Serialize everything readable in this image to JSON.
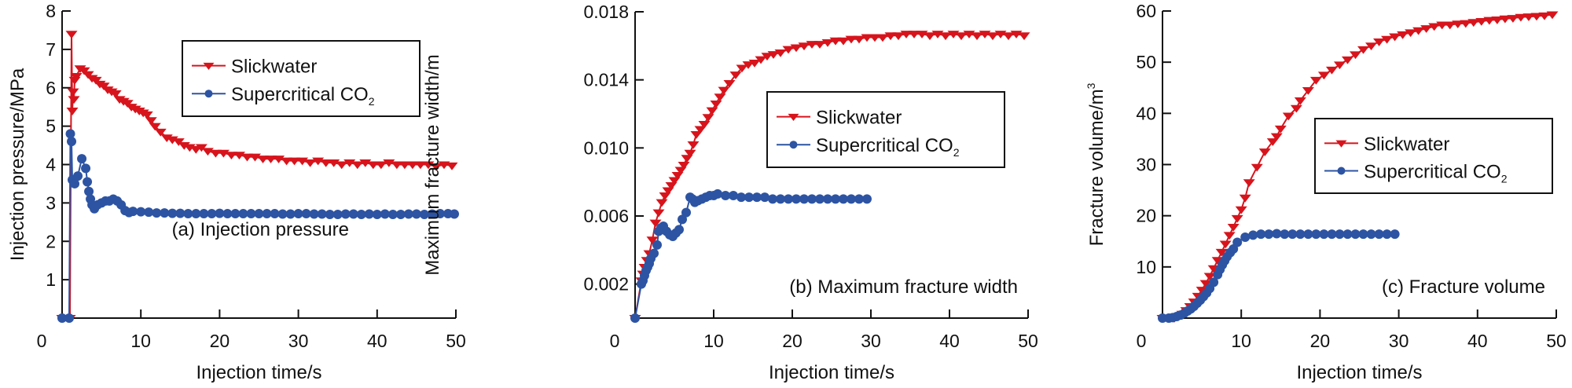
{
  "colors": {
    "slickwater": "#d7141c",
    "co2": "#2d54a3",
    "axis": "#111111"
  },
  "legend": {
    "slickwater": "Slickwater",
    "co2_main": "Supercritical CO",
    "co2_sub": "2"
  },
  "chart_data": [
    {
      "id": "a",
      "type": "line",
      "panel_label": "(a) Injection pressure",
      "xlabel": "Injection time/s",
      "ylabel": "Injection pressure/MPa",
      "ylabel_sup": "",
      "xlim": [
        0,
        50
      ],
      "ylim": [
        0,
        8
      ],
      "xticks": [
        0,
        10,
        20,
        30,
        40,
        50
      ],
      "xtick_labels": [
        "0",
        "10",
        "20",
        "30",
        "40",
        "50"
      ],
      "yticks": [
        1,
        2,
        3,
        4,
        5,
        6,
        7,
        8
      ],
      "ytick_labels": [
        "1",
        "2",
        "3",
        "4",
        "5",
        "6",
        "7",
        "8"
      ],
      "legend_position": "top-right",
      "grid": false,
      "series": [
        {
          "name": "Slickwater",
          "marker": "triangle-down",
          "x": [
            0,
            1,
            1.2,
            1.3,
            1.4,
            1.5,
            1.6,
            1.8,
            2.3,
            2.8,
            3.3,
            3.8,
            4.3,
            4.8,
            5.3,
            5.8,
            6.3,
            6.8,
            7.3,
            7.8,
            8.3,
            8.8,
            9.3,
            9.8,
            10.3,
            10.8,
            11.3,
            11.8,
            12.5,
            13.3,
            14.0,
            14.8,
            15.5,
            16.2,
            17.0,
            17.7,
            18.5,
            19.5,
            20.5,
            21.5,
            22.5,
            23.5,
            24.5,
            25.5,
            26.5,
            27.5,
            28.5,
            29.5,
            30.5,
            31.5,
            32.5,
            33.5,
            34.5,
            35.5,
            36.5,
            37.5,
            38.5,
            39.5,
            40.5,
            41.5,
            42.5,
            43.5,
            44.5,
            45.5,
            46.5,
            47.5,
            48.5,
            49.5
          ],
          "y": [
            0,
            0,
            7.4,
            5.4,
            5.9,
            5.7,
            6.2,
            6.3,
            6.5,
            6.45,
            6.35,
            6.25,
            6.2,
            6.1,
            6.05,
            5.95,
            5.9,
            5.85,
            5.7,
            5.65,
            5.6,
            5.5,
            5.45,
            5.4,
            5.35,
            5.3,
            5.15,
            5.0,
            4.85,
            4.7,
            4.65,
            4.6,
            4.5,
            4.45,
            4.4,
            4.45,
            4.35,
            4.3,
            4.3,
            4.25,
            4.25,
            4.2,
            4.2,
            4.15,
            4.15,
            4.15,
            4.1,
            4.1,
            4.1,
            4.05,
            4.1,
            4.05,
            4.05,
            4.0,
            4.05,
            4.0,
            4.05,
            4.0,
            4.0,
            4.05,
            4.0,
            4.0,
            4.0,
            4.0,
            4.0,
            3.95,
            4.0,
            3.97
          ]
        },
        {
          "name": "Supercritical CO2",
          "marker": "circle",
          "x": [
            0,
            0.9,
            1.05,
            1.2,
            1.3,
            1.6,
            2.0,
            2.5,
            3.0,
            3.2,
            3.4,
            3.6,
            3.8,
            4.1,
            4.5,
            5.0,
            5.5,
            6.0,
            6.5,
            7.0,
            7.5,
            8.0,
            8.5,
            9.0,
            10.0,
            11.0,
            12.0,
            13.0,
            14.0,
            15.0,
            16.0,
            17.0,
            18.0,
            19.0,
            20.0,
            21.0,
            22.0,
            23.0,
            24.0,
            25.0,
            26.0,
            27.0,
            28.0,
            29.0,
            30.0,
            31.0,
            32.0,
            33.0,
            34.0,
            35.0,
            36.0,
            37.0,
            38.0,
            39.0,
            40.0,
            41.0,
            42.0,
            43.0,
            44.0,
            45.0,
            46.0,
            47.0,
            48.0,
            49.0,
            49.8
          ],
          "y": [
            0,
            0,
            4.8,
            4.6,
            3.6,
            3.5,
            3.7,
            4.15,
            3.9,
            3.55,
            3.3,
            3.1,
            2.95,
            2.85,
            2.95,
            3.0,
            3.05,
            3.05,
            3.1,
            3.05,
            2.95,
            2.8,
            2.75,
            2.78,
            2.77,
            2.76,
            2.74,
            2.74,
            2.73,
            2.73,
            2.72,
            2.72,
            2.72,
            2.72,
            2.73,
            2.72,
            2.72,
            2.72,
            2.72,
            2.72,
            2.72,
            2.72,
            2.71,
            2.71,
            2.72,
            2.72,
            2.71,
            2.71,
            2.7,
            2.7,
            2.71,
            2.71,
            2.7,
            2.71,
            2.7,
            2.71,
            2.7,
            2.7,
            2.71,
            2.71,
            2.7,
            2.71,
            2.72,
            2.72,
            2.71
          ]
        }
      ]
    },
    {
      "id": "b",
      "type": "line",
      "panel_label": "(b) Maximum fracture width",
      "xlabel": "Injection time/s",
      "ylabel": "Maximum fracture width/m",
      "ylabel_sup": "",
      "xlim": [
        0,
        50
      ],
      "ylim": [
        0,
        0.018
      ],
      "xticks": [
        0,
        10,
        20,
        30,
        40,
        50
      ],
      "xtick_labels": [
        "0",
        "10",
        "20",
        "30",
        "40",
        "50"
      ],
      "yticks": [
        0.002,
        0.006,
        0.01,
        0.014,
        0.018
      ],
      "ytick_labels": [
        "0.002",
        "0.006",
        "0.010",
        "0.014",
        "0.018"
      ],
      "legend_position": "center-right",
      "grid": false,
      "series": [
        {
          "name": "Slickwater",
          "marker": "triangle-down",
          "x": [
            0,
            0.8,
            1.0,
            1.2,
            1.5,
            1.8,
            2.2,
            2.6,
            3.0,
            3.4,
            3.8,
            4.2,
            4.6,
            5.0,
            5.4,
            5.8,
            6.2,
            6.6,
            7.0,
            7.4,
            7.8,
            8.3,
            8.8,
            9.3,
            9.8,
            10.3,
            10.8,
            11.3,
            12.0,
            12.8,
            13.6,
            14.4,
            15.2,
            16.0,
            16.8,
            17.6,
            18.5,
            19.5,
            20.5,
            21.5,
            22.5,
            23.5,
            24.5,
            25.5,
            26.5,
            27.5,
            28.5,
            29.5,
            30.5,
            31.5,
            32.5,
            33.5,
            34.5,
            35.5,
            36.5,
            37.5,
            38.5,
            39.5,
            40.5,
            41.5,
            42.5,
            43.5,
            44.5,
            45.5,
            46.5,
            47.5,
            48.5,
            49.5
          ],
          "y": [
            0,
            0.0022,
            0.0026,
            0.003,
            0.0034,
            0.0038,
            0.0046,
            0.0056,
            0.0062,
            0.0068,
            0.0072,
            0.0075,
            0.0078,
            0.0081,
            0.0084,
            0.0087,
            0.009,
            0.0094,
            0.0097,
            0.0102,
            0.0108,
            0.0111,
            0.0114,
            0.0118,
            0.0122,
            0.0126,
            0.013,
            0.0134,
            0.0138,
            0.0143,
            0.0147,
            0.0149,
            0.015,
            0.0152,
            0.0154,
            0.0155,
            0.0156,
            0.0158,
            0.0159,
            0.016,
            0.0161,
            0.0161,
            0.0162,
            0.0163,
            0.0163,
            0.0164,
            0.0164,
            0.0165,
            0.0165,
            0.0165,
            0.0166,
            0.0166,
            0.0167,
            0.0167,
            0.0167,
            0.0166,
            0.0167,
            0.0166,
            0.0167,
            0.0166,
            0.0167,
            0.0166,
            0.0167,
            0.0166,
            0.0167,
            0.0166,
            0.0167,
            0.0166
          ]
        },
        {
          "name": "Supercritical CO2",
          "marker": "circle",
          "x": [
            0,
            0.8,
            1.0,
            1.2,
            1.4,
            1.6,
            1.8,
            2.0,
            2.4,
            2.8,
            3.0,
            3.3,
            3.6,
            4.0,
            4.4,
            4.8,
            5.2,
            5.6,
            6.0,
            6.5,
            7.0,
            7.3,
            7.6,
            8.0,
            8.5,
            9.0,
            9.5,
            10.0,
            10.5,
            11.5,
            12.5,
            13.5,
            14.5,
            15.5,
            16.5,
            17.5,
            18.5,
            19.5,
            20.5,
            21.5,
            22.5,
            23.5,
            24.5,
            25.5,
            26.5,
            27.5,
            28.5,
            29.5
          ],
          "y": [
            0,
            0.002,
            0.0022,
            0.0025,
            0.0028,
            0.003,
            0.0032,
            0.0035,
            0.0038,
            0.0043,
            0.0051,
            0.0053,
            0.0054,
            0.0051,
            0.0049,
            0.0048,
            0.005,
            0.0052,
            0.0058,
            0.0062,
            0.0071,
            0.007,
            0.0068,
            0.0069,
            0.007,
            0.0071,
            0.0072,
            0.0072,
            0.0073,
            0.0072,
            0.0072,
            0.0071,
            0.0071,
            0.0071,
            0.0071,
            0.007,
            0.007,
            0.007,
            0.007,
            0.007,
            0.007,
            0.007,
            0.007,
            0.007,
            0.007,
            0.007,
            0.007,
            0.007
          ]
        }
      ]
    },
    {
      "id": "c",
      "type": "line",
      "panel_label": "(c) Fracture volume",
      "xlabel": "Injection time/s",
      "ylabel": "Fracture volume/m",
      "ylabel_sup": "3",
      "xlim": [
        0,
        50
      ],
      "ylim": [
        0,
        60
      ],
      "xticks": [
        0,
        10,
        20,
        30,
        40,
        50
      ],
      "xtick_labels": [
        "0",
        "10",
        "20",
        "30",
        "40",
        "50"
      ],
      "yticks": [
        10,
        20,
        30,
        40,
        50,
        60
      ],
      "ytick_labels": [
        "10",
        "20",
        "30",
        "40",
        "50",
        "60"
      ],
      "legend_position": "center-right",
      "grid": false,
      "series": [
        {
          "name": "Slickwater",
          "marker": "triangle-down",
          "x": [
            0,
            1.0,
            1.5,
            2.0,
            2.5,
            3.0,
            3.5,
            4.0,
            4.5,
            5.0,
            5.5,
            6.0,
            6.5,
            7.0,
            7.5,
            8.0,
            8.5,
            9.0,
            9.5,
            10.0,
            10.5,
            11.0,
            12.0,
            13.0,
            14.0,
            14.5,
            15.0,
            16.0,
            17.0,
            17.5,
            18.5,
            19.5,
            20.5,
            21.5,
            22.5,
            23.5,
            24.5,
            25.5,
            26.5,
            27.5,
            28.5,
            29.5,
            30.5,
            31.5,
            32.5,
            33.5,
            34.5,
            35.5,
            36.5,
            37.5,
            38.5,
            39.5,
            40.5,
            41.5,
            42.5,
            43.5,
            44.5,
            45.5,
            46.5,
            47.5,
            48.5,
            49.5
          ],
          "y": [
            0,
            0,
            0,
            0.3,
            0.8,
            1.5,
            2.3,
            3.2,
            4.3,
            5.5,
            6.8,
            8.2,
            9.7,
            11.3,
            12.9,
            14.5,
            16.2,
            17.8,
            19.5,
            21.2,
            23.5,
            26.5,
            29.5,
            32.5,
            34.5,
            35.5,
            37.0,
            39.5,
            41.0,
            42.5,
            44.5,
            46.5,
            47.5,
            48.5,
            49.5,
            50.5,
            51.5,
            52.5,
            53.2,
            54.0,
            54.5,
            55.0,
            55.4,
            55.8,
            56.2,
            56.6,
            57.0,
            57.3,
            57.3,
            57.5,
            57.6,
            57.8,
            58.0,
            58.2,
            58.3,
            58.5,
            58.6,
            58.8,
            58.9,
            59.0,
            59.1,
            59.3
          ]
        },
        {
          "name": "Supercritical CO2",
          "marker": "circle",
          "x": [
            0,
            0.8,
            1.3,
            1.8,
            2.3,
            2.8,
            3.2,
            3.6,
            4.0,
            4.4,
            4.8,
            5.2,
            5.6,
            6.0,
            6.5,
            7.0,
            7.3,
            7.6,
            7.9,
            8.2,
            8.6,
            9.0,
            9.5,
            10.5,
            11.5,
            12.5,
            13.5,
            14.5,
            15.5,
            16.5,
            17.5,
            18.5,
            19.5,
            20.5,
            21.5,
            22.5,
            23.5,
            24.5,
            25.5,
            26.5,
            27.5,
            28.5,
            29.5
          ],
          "y": [
            0,
            0,
            0.1,
            0.3,
            0.6,
            1.0,
            1.4,
            1.8,
            2.3,
            2.9,
            3.5,
            4.2,
            4.9,
            5.8,
            7.0,
            8.5,
            9.5,
            10.4,
            11.2,
            12.0,
            12.8,
            13.5,
            14.8,
            15.8,
            16.2,
            16.4,
            16.4,
            16.5,
            16.4,
            16.4,
            16.4,
            16.4,
            16.4,
            16.4,
            16.4,
            16.4,
            16.4,
            16.4,
            16.4,
            16.4,
            16.4,
            16.4,
            16.4
          ]
        }
      ]
    }
  ]
}
